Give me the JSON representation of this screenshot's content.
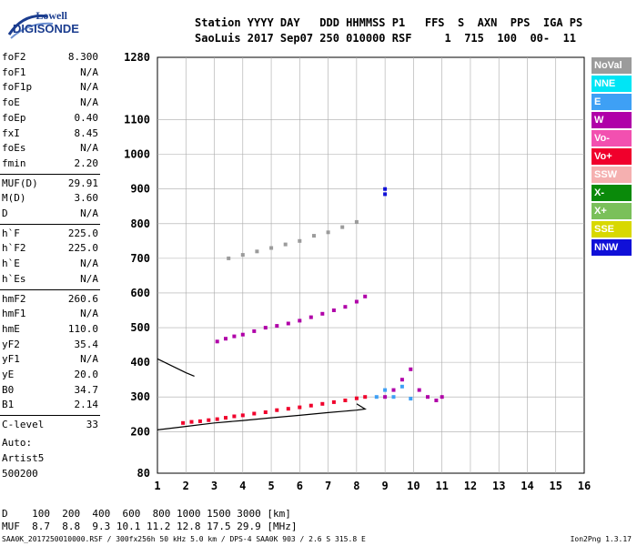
{
  "logo": {
    "brand_top": "Lowell",
    "brand_main": "DIGISONDE"
  },
  "header": {
    "line1": "Station YYYY DAY   DDD HHMMSS P1   FFS  S  AXN  PPS  IGA PS",
    "line2": "SaoLuis 2017 Sep07 250 010000 RSF     1  715  100  00-  11"
  },
  "params": [
    {
      "name": "foF2",
      "value": "8.300"
    },
    {
      "name": "foF1",
      "value": "N/A"
    },
    {
      "name": "foF1p",
      "value": "N/A"
    },
    {
      "name": "foE",
      "value": "N/A"
    },
    {
      "name": "foEp",
      "value": "0.40"
    },
    {
      "name": "fxI",
      "value": "8.45"
    },
    {
      "name": "foEs",
      "value": "N/A"
    },
    {
      "name": "fmin",
      "value": "2.20"
    },
    {
      "name": "MUF(D)",
      "value": "29.91"
    },
    {
      "name": "M(D)",
      "value": "3.60"
    },
    {
      "name": "D",
      "value": "N/A"
    },
    {
      "name": "h`F",
      "value": "225.0"
    },
    {
      "name": "h`F2",
      "value": "225.0"
    },
    {
      "name": "h`E",
      "value": "N/A"
    },
    {
      "name": "h`Es",
      "value": "N/A"
    },
    {
      "name": "hmF2",
      "value": "260.6"
    },
    {
      "name": "hmF1",
      "value": "N/A"
    },
    {
      "name": "hmE",
      "value": "110.0"
    },
    {
      "name": "yF2",
      "value": "35.4"
    },
    {
      "name": "yF1",
      "value": "N/A"
    },
    {
      "name": "yE",
      "value": "20.0"
    },
    {
      "name": "B0",
      "value": "34.7"
    },
    {
      "name": "B1",
      "value": "2.14"
    },
    {
      "name": "C-level",
      "value": "33"
    }
  ],
  "autoscaling": {
    "line1": "Auto:",
    "line2": "Artist5",
    "line3": "500200"
  },
  "legend": [
    {
      "label": "NoVal",
      "color": "#9b9b9b"
    },
    {
      "label": "NNE",
      "color": "#00e5f5"
    },
    {
      "label": "E",
      "color": "#3ea0f5"
    },
    {
      "label": "W",
      "color": "#b000a8"
    },
    {
      "label": "Vo-",
      "color": "#f250b0"
    },
    {
      "label": "Vo+",
      "color": "#f0002c"
    },
    {
      "label": "SSW",
      "color": "#f5b0b0"
    },
    {
      "label": "X-",
      "color": "#0a8a0a"
    },
    {
      "label": "X+",
      "color": "#7ac05a"
    },
    {
      "label": "SSE",
      "color": "#d8d800"
    },
    {
      "label": "NNW",
      "color": "#1010d8"
    }
  ],
  "chart_data": {
    "type": "scatter",
    "title": "",
    "xlabel": "",
    "ylabel": "",
    "x_ticks": [
      1,
      2,
      3,
      4,
      5,
      6,
      7,
      8,
      9,
      10,
      11,
      12,
      13,
      14,
      15,
      16
    ],
    "y_ticks": [
      80,
      200,
      300,
      400,
      500,
      600,
      700,
      800,
      900,
      1000,
      1100,
      1280
    ],
    "xlim": [
      1,
      16
    ],
    "ylim": [
      80,
      1280
    ],
    "grid": true,
    "series": [
      {
        "color": "#f0002c",
        "x": [
          1.9,
          2.2,
          2.5,
          2.8,
          3.1,
          3.4,
          3.7,
          4.0,
          4.4,
          4.8,
          5.2,
          5.6,
          6.0,
          6.4,
          6.8,
          7.2,
          7.6,
          8.0,
          8.3
        ],
        "y": [
          225,
          228,
          230,
          233,
          236,
          240,
          244,
          247,
          252,
          256,
          262,
          266,
          270,
          275,
          280,
          285,
          290,
          296,
          300
        ]
      },
      {
        "color": "#b000a8",
        "x": [
          3.1,
          3.4,
          3.7,
          4.0,
          4.4,
          4.8,
          5.2,
          5.6,
          6.0,
          6.4,
          6.8,
          7.2,
          7.6,
          8.0,
          8.3
        ],
        "y": [
          460,
          468,
          475,
          480,
          490,
          500,
          505,
          512,
          520,
          530,
          540,
          550,
          560,
          575,
          590
        ]
      },
      {
        "color": "#9b9b9b",
        "x": [
          3.5,
          4.0,
          4.5,
          5.0,
          5.5,
          6.0,
          6.5,
          7.0,
          7.5,
          8.0
        ],
        "y": [
          700,
          710,
          720,
          730,
          740,
          750,
          765,
          775,
          790,
          805
        ]
      },
      {
        "color": "#b000a8",
        "x": [
          9.0,
          9.3,
          9.6,
          9.9,
          10.2,
          10.5,
          10.8,
          11.0
        ],
        "y": [
          300,
          320,
          350,
          380,
          320,
          300,
          290,
          300
        ]
      },
      {
        "color": "#3ea0f5",
        "x": [
          8.7,
          9.0,
          9.3,
          9.6,
          9.9
        ],
        "y": [
          300,
          320,
          300,
          330,
          295
        ]
      },
      {
        "color": "#1010d8",
        "x": [
          9.0,
          9.0
        ],
        "y": [
          885,
          900
        ]
      }
    ],
    "lines": [
      {
        "color": "#000000",
        "x": [
          1.0,
          2.0,
          3.0,
          4.0,
          5.0,
          6.0,
          7.0,
          8.0,
          8.3,
          8.0
        ],
        "y": [
          205,
          215,
          225,
          232,
          240,
          247,
          255,
          262,
          265,
          280
        ]
      },
      {
        "color": "#000000",
        "x": [
          1.0,
          1.5,
          2.0,
          2.3
        ],
        "y": [
          410,
          390,
          370,
          360
        ]
      }
    ]
  },
  "footer": {
    "line1": "D    100  200  400  600  800 1000 1500 3000 [km]",
    "line2": "MUF  8.7  8.8  9.3 10.1 11.2 12.8 17.5 29.9 [MHz]",
    "bottom_left": "SAA0K_2017250010000.RSF / 300fx256h 50 kHz 5.0 km / DPS-4 SAA0K 903 / 2.6 S 315.8 E",
    "bottom_right": "Ion2Png 1.3.17"
  }
}
